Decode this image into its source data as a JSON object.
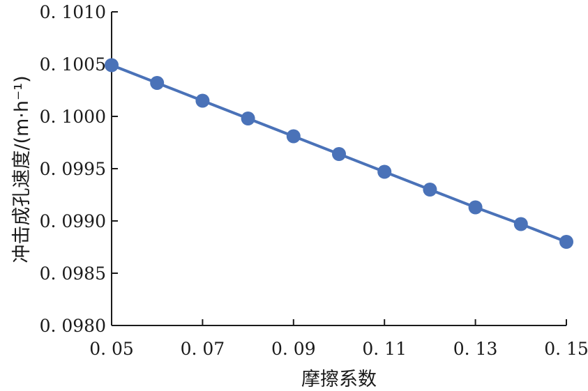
{
  "chart_data": {
    "type": "line",
    "title": "",
    "xlabel": "摩擦系数",
    "ylabel": "冲击成孔速度/(m·h⁻¹)",
    "xlim": [
      0.05,
      0.15
    ],
    "ylim": [
      0.098,
      0.101
    ],
    "x_ticks": [
      "0. 05",
      "0. 07",
      "0. 09",
      "0. 11",
      "0. 13",
      "0. 15"
    ],
    "y_ticks": [
      "0. 0980",
      "0. 0985",
      "0. 0990",
      "0. 0995",
      "0. 1000",
      "0. 1005",
      "0. 1010"
    ],
    "grid": false,
    "legend": "none",
    "series": [
      {
        "color": "#4a72b8",
        "x": [
          0.05,
          0.06,
          0.07,
          0.08,
          0.09,
          0.1,
          0.11,
          0.12,
          0.13,
          0.14,
          0.15
        ],
        "y": [
          0.10049,
          0.10032,
          0.10015,
          0.09998,
          0.09981,
          0.09964,
          0.09947,
          0.0993,
          0.09913,
          0.09897,
          0.0988
        ]
      }
    ]
  }
}
